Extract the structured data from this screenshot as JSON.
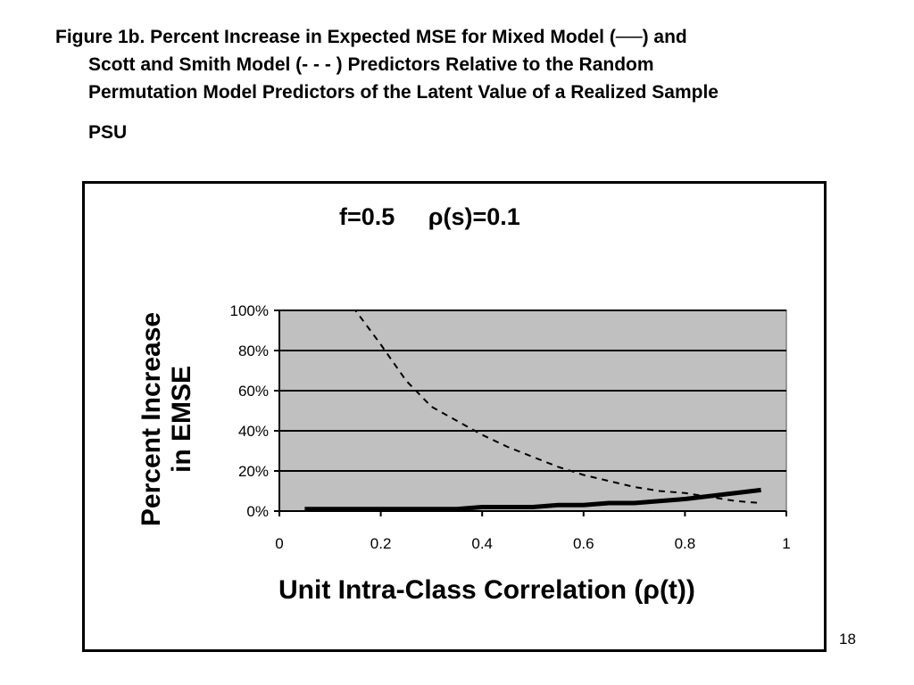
{
  "caption": {
    "line1": "Figure 1b.  Percent Increase in Expected MSE for Mixed Model (──) and",
    "line2": "Scott and Smith Model (- - - ) Predictors Relative to the Random",
    "line3": "Permutation Model Predictors of the Latent Value of a Realized Sample",
    "line4": "PSU"
  },
  "slide_number": "18",
  "chart_data": {
    "type": "line",
    "title": "f=0.5     ρ(s)=0.1",
    "xlabel": "Unit Intra-Class Correlation (ρ(t))",
    "ylabel_line1": "Percent Increase",
    "ylabel_line2": "in EMSE",
    "xlim": [
      0,
      1
    ],
    "ylim": [
      0,
      100
    ],
    "x_ticks": [
      0,
      0.2,
      0.4,
      0.6,
      0.8,
      1
    ],
    "x_tick_labels": [
      "0",
      "0.2",
      "0.4",
      "0.6",
      "0.8",
      "1"
    ],
    "y_ticks": [
      0,
      20,
      40,
      60,
      80,
      100
    ],
    "y_tick_labels": [
      "0%",
      "20%",
      "40%",
      "60%",
      "80%",
      "100%"
    ],
    "grid": "horizontal",
    "plot_background": "#c0c0c0",
    "series": [
      {
        "style": "solid",
        "color": "#000000",
        "x": [
          0.05,
          0.1,
          0.15,
          0.2,
          0.25,
          0.3,
          0.35,
          0.4,
          0.45,
          0.5,
          0.55,
          0.6,
          0.65,
          0.7,
          0.75,
          0.8,
          0.85,
          0.9,
          0.95
        ],
        "y": [
          1,
          1,
          1,
          1,
          1,
          1,
          1,
          2,
          2,
          2,
          3,
          3,
          4,
          4,
          5,
          6,
          7.5,
          9,
          10.5
        ]
      },
      {
        "style": "dashed",
        "color": "#000000",
        "x": [
          0.05,
          0.1,
          0.15,
          0.2,
          0.25,
          0.3,
          0.35,
          0.4,
          0.45,
          0.5,
          0.55,
          0.6,
          0.65,
          0.7,
          0.75,
          0.8,
          0.85,
          0.9,
          0.95
        ],
        "y": [
          100,
          100,
          100,
          83,
          65,
          52,
          45,
          38,
          32,
          27,
          22,
          18,
          15,
          12,
          10,
          9,
          7,
          5,
          4
        ]
      }
    ]
  }
}
